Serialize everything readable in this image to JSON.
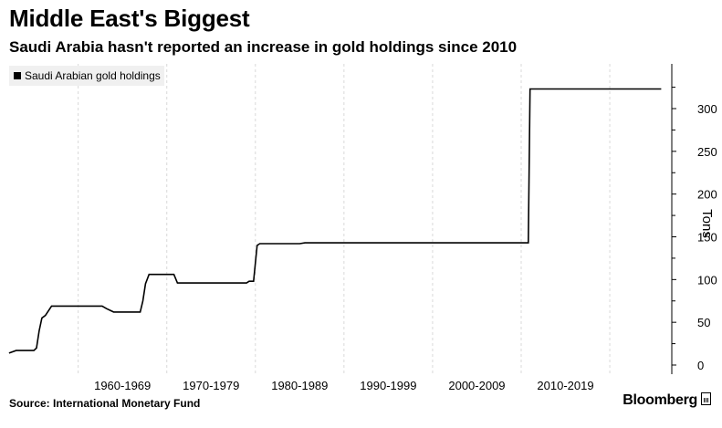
{
  "header": {
    "title": "Middle East's Biggest",
    "subtitle": "Saudi Arabia hasn't reported an increase in gold holdings since 2010"
  },
  "footer": {
    "source": "Source: International Monetary Fund",
    "brand": "Bloomberg"
  },
  "chart_data": {
    "type": "line",
    "ylabel": "Tons",
    "ylim": [
      0,
      350
    ],
    "xlim": [
      1952,
      2027
    ],
    "yticks": [
      0,
      50,
      100,
      150,
      200,
      250,
      300
    ],
    "xtick_labels": [
      "1960-1969",
      "1970-1979",
      "1980-1989",
      "1990-1999",
      "2000-2009",
      "2010-2019"
    ],
    "grid": "vertical dashed at decade boundaries",
    "legend_position": "top-left",
    "colors": {
      "line": "#000000",
      "grid": "#d9d9d9",
      "legend_bg": "#f0f0f0"
    },
    "series": [
      {
        "name": "Saudi Arabian gold holdings",
        "x": [
          1952.2,
          1953.0,
          1954.0,
          1954.8,
          1955.0,
          1955.3,
          1955.6,
          1955.9,
          1956.3,
          1957.0,
          1958.0,
          1959.0,
          1960.0,
          1961.0,
          1962.0,
          1962.7,
          1963.2,
          1964.0,
          1965.0,
          1966.0,
          1966.8,
          1967.0,
          1967.3,
          1967.6,
          1968.0,
          1969.0,
          1970.0,
          1970.5,
          1970.8,
          1971.2,
          1972.0,
          1973.0,
          1974.0,
          1975.0,
          1976.0,
          1977.0,
          1978.0,
          1979.0,
          1979.3,
          1979.8,
          1980.2,
          1980.5,
          1981.0,
          1982.0,
          1983.0,
          1984.0,
          1985.0,
          1985.6,
          1986.0,
          1990.0,
          1995.0,
          2000.0,
          2005.0,
          2008.0,
          2010.5,
          2010.8,
          2011.0,
          2015.0,
          2020.0,
          2024.0,
          2025.8
        ],
        "values": [
          14,
          17,
          17,
          17,
          17,
          20,
          40,
          55,
          58,
          69,
          69,
          69,
          69,
          69,
          69,
          69,
          66,
          62,
          62,
          62,
          62,
          62,
          75,
          95,
          106,
          106,
          106,
          106,
          106,
          96,
          96,
          96,
          96,
          96,
          96,
          96,
          96,
          96,
          98,
          98,
          140,
          142,
          142,
          142,
          142,
          142,
          142,
          143,
          143,
          143,
          143,
          143,
          143,
          143,
          143,
          143,
          323,
          323,
          323,
          323,
          323
        ]
      }
    ]
  }
}
